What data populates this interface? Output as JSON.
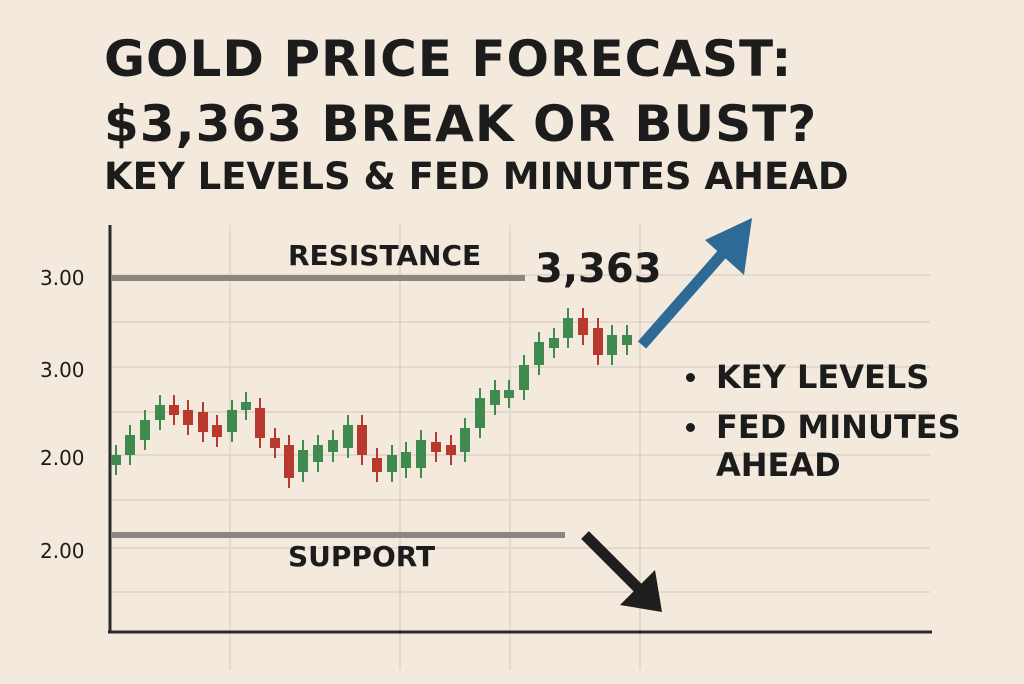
{
  "header": {
    "title_lines": [
      "GOLD PRICE FORECAST:",
      "$3,363 BREAK OR BUST?"
    ],
    "subtitle": "KEY LEVELS & FED MINUTES AHEAD"
  },
  "chart": {
    "axis_labels": [
      "3.00",
      "3.00",
      "2.00",
      "2.00"
    ],
    "resistance_label": "RESISTANCE",
    "price_label": "3,363",
    "support_label": "SUPPORT"
  },
  "bullets": [
    "KEY LEVELS",
    "FED MINUTES AHEAD"
  ]
}
